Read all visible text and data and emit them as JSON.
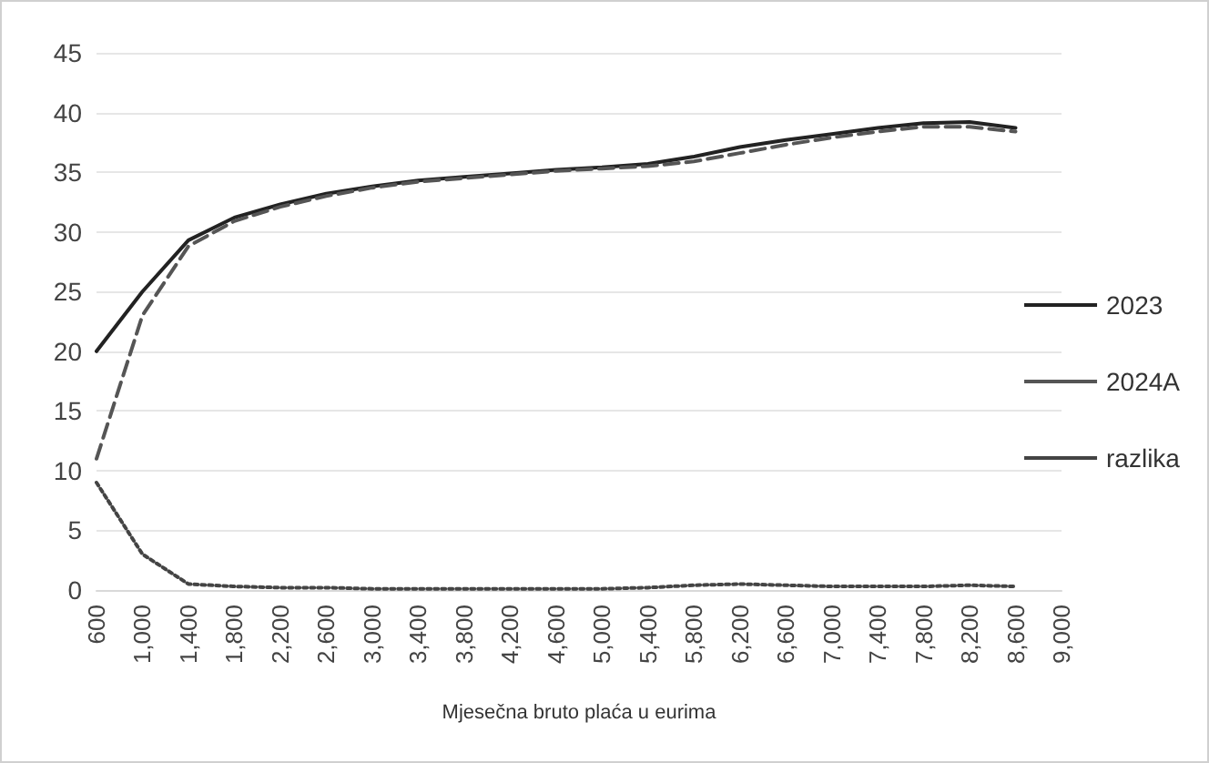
{
  "chart_data": {
    "type": "line",
    "xlabel": "Mjesečna bruto plaća u eurima",
    "categories": [
      "600",
      "1,000",
      "1,400",
      "1,800",
      "2,200",
      "2,600",
      "3,000",
      "3,400",
      "3,800",
      "4,200",
      "4,600",
      "5,000",
      "5,400",
      "5,800",
      "6,200",
      "6,600",
      "7,000",
      "7,400",
      "7,800",
      "8,200",
      "8,600",
      "9,000"
    ],
    "series": [
      {
        "name": "2023",
        "color": "#222222",
        "line_style": "solid",
        "values": [
          20,
          25,
          29.3,
          31.2,
          32.3,
          33.2,
          33.8,
          34.3,
          34.6,
          34.9,
          35.2,
          35.4,
          35.7,
          36.3,
          37.1,
          37.7,
          38.2,
          38.7,
          39.1,
          39.2,
          38.7,
          null
        ]
      },
      {
        "name": "2024A",
        "color": "#555555",
        "line_style": "dashed",
        "values": [
          11,
          23,
          28.8,
          30.9,
          32.1,
          33,
          33.7,
          34.2,
          34.5,
          34.8,
          35.1,
          35.3,
          35.5,
          35.9,
          36.6,
          37.3,
          37.9,
          38.4,
          38.8,
          38.8,
          38.4,
          null
        ]
      },
      {
        "name": "razlika",
        "color": "#444444",
        "line_style": "dotted",
        "values": [
          9,
          3,
          0.5,
          0.3,
          0.2,
          0.2,
          0.1,
          0.1,
          0.1,
          0.1,
          0.1,
          0.1,
          0.2,
          0.4,
          0.5,
          0.4,
          0.3,
          0.3,
          0.3,
          0.4,
          0.3,
          null
        ]
      }
    ],
    "ylim": [
      0,
      45
    ],
    "yticks": [
      0,
      5,
      10,
      15,
      20,
      25,
      30,
      35,
      40,
      45
    ],
    "grid": "y",
    "legend": "right",
    "marker": "none"
  }
}
